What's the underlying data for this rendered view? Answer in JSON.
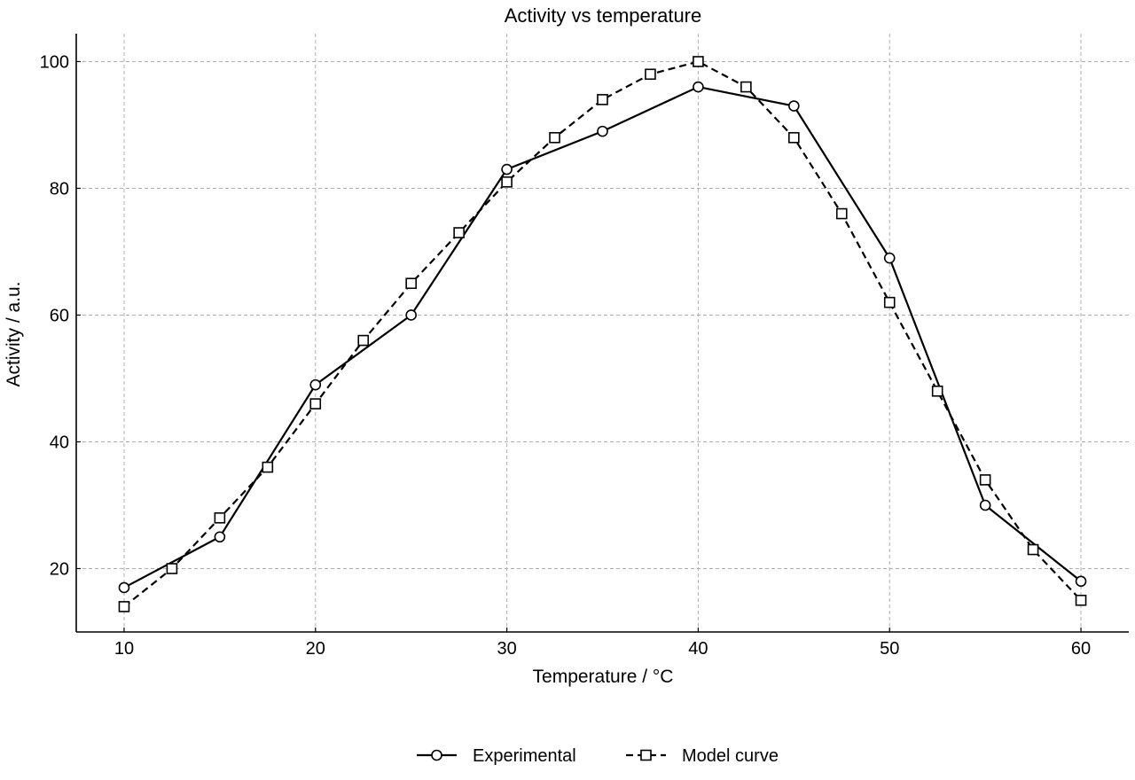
{
  "chart_data": {
    "type": "line",
    "title": "Activity vs temperature",
    "xlabel": "Temperature / °C",
    "ylabel": "Activity / a.u.",
    "xlim": [
      7.5,
      62.5
    ],
    "ylim": [
      10,
      104.4
    ],
    "xticks": [
      10,
      20,
      30,
      40,
      50,
      60
    ],
    "yticks": [
      20,
      40,
      60,
      80,
      100
    ],
    "grid": true,
    "legend_position": "bottom-center",
    "series": [
      {
        "name": "Experimental",
        "line_style": "solid",
        "marker": "circle",
        "color": "#000000",
        "x": [
          10,
          15,
          20,
          25,
          30,
          35,
          40,
          45,
          50,
          55,
          60
        ],
        "y": [
          17,
          25,
          49,
          60,
          83,
          89,
          96,
          93,
          69,
          30,
          18
        ]
      },
      {
        "name": "Model curve",
        "line_style": "dashed",
        "marker": "square",
        "color": "#000000",
        "x": [
          10,
          12.5,
          15,
          17.5,
          20,
          22.5,
          25,
          27.5,
          30,
          32.5,
          35,
          37.5,
          40,
          42.5,
          45,
          47.5,
          50,
          52.5,
          55,
          57.5,
          60
        ],
        "y": [
          14,
          20,
          28,
          36,
          46,
          56,
          65,
          73,
          81,
          88,
          94,
          98,
          100,
          96,
          88,
          76,
          62,
          48,
          34,
          23,
          15
        ]
      }
    ]
  }
}
